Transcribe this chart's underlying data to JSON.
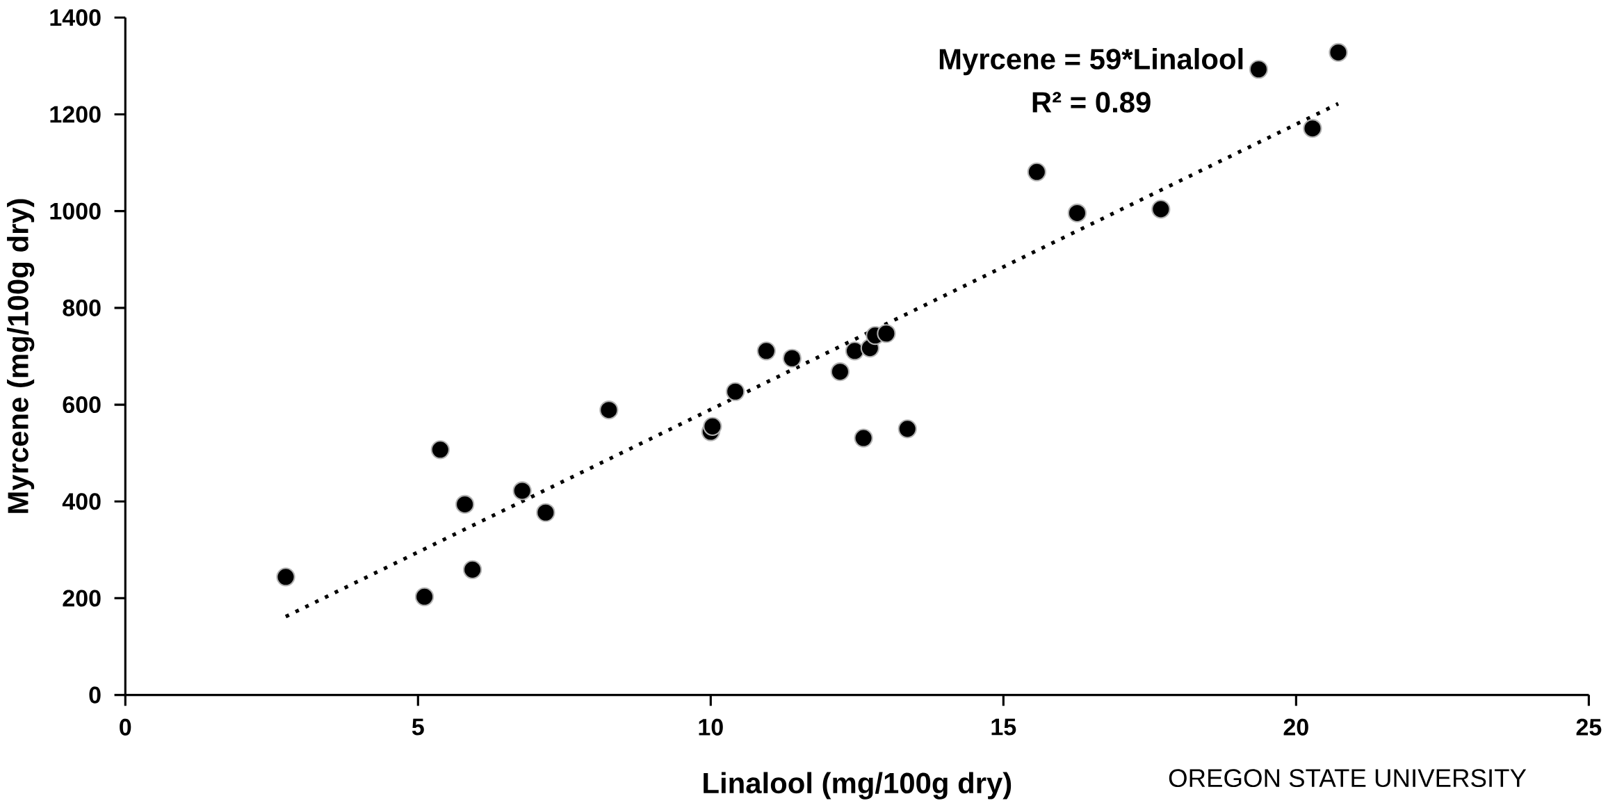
{
  "chart_data": {
    "type": "scatter",
    "xlabel": "Linalool (mg/100g dry)",
    "ylabel": "Myrcene (mg/100g dry)",
    "annotations": [
      "Myrcene = 59*Linalool",
      "R² = 0.89",
      "OREGON STATE UNIVERSITY"
    ],
    "xlim": [
      0,
      25
    ],
    "ylim": [
      0,
      1400
    ],
    "xticks": [
      0,
      5,
      10,
      15,
      20,
      25
    ],
    "yticks": [
      0,
      200,
      400,
      600,
      800,
      1000,
      1200,
      1400
    ],
    "series": [
      {
        "marker": "circle",
        "color": "#000000",
        "x": [
          2.74,
          5.11,
          5.38,
          5.8,
          5.93,
          6.78,
          7.18,
          8.26,
          10.0,
          10.03,
          10.42,
          10.95,
          11.39,
          12.21,
          12.46,
          12.61,
          12.72,
          12.81,
          13.0,
          13.36,
          15.57,
          16.26,
          17.69,
          19.36,
          20.28,
          20.72
        ],
        "values": [
          244,
          203,
          507,
          394,
          259,
          422,
          377,
          589,
          544,
          555,
          627,
          711,
          696,
          668,
          711,
          531,
          717,
          743,
          747,
          550,
          1081,
          996,
          1004,
          1293,
          1171,
          1328
        ]
      },
      {
        "type": "line",
        "marker": "none",
        "line_style": "dotted",
        "color": "#000000",
        "x": [
          2.74,
          20.72
        ],
        "values": [
          162,
          1222
        ]
      }
    ]
  }
}
